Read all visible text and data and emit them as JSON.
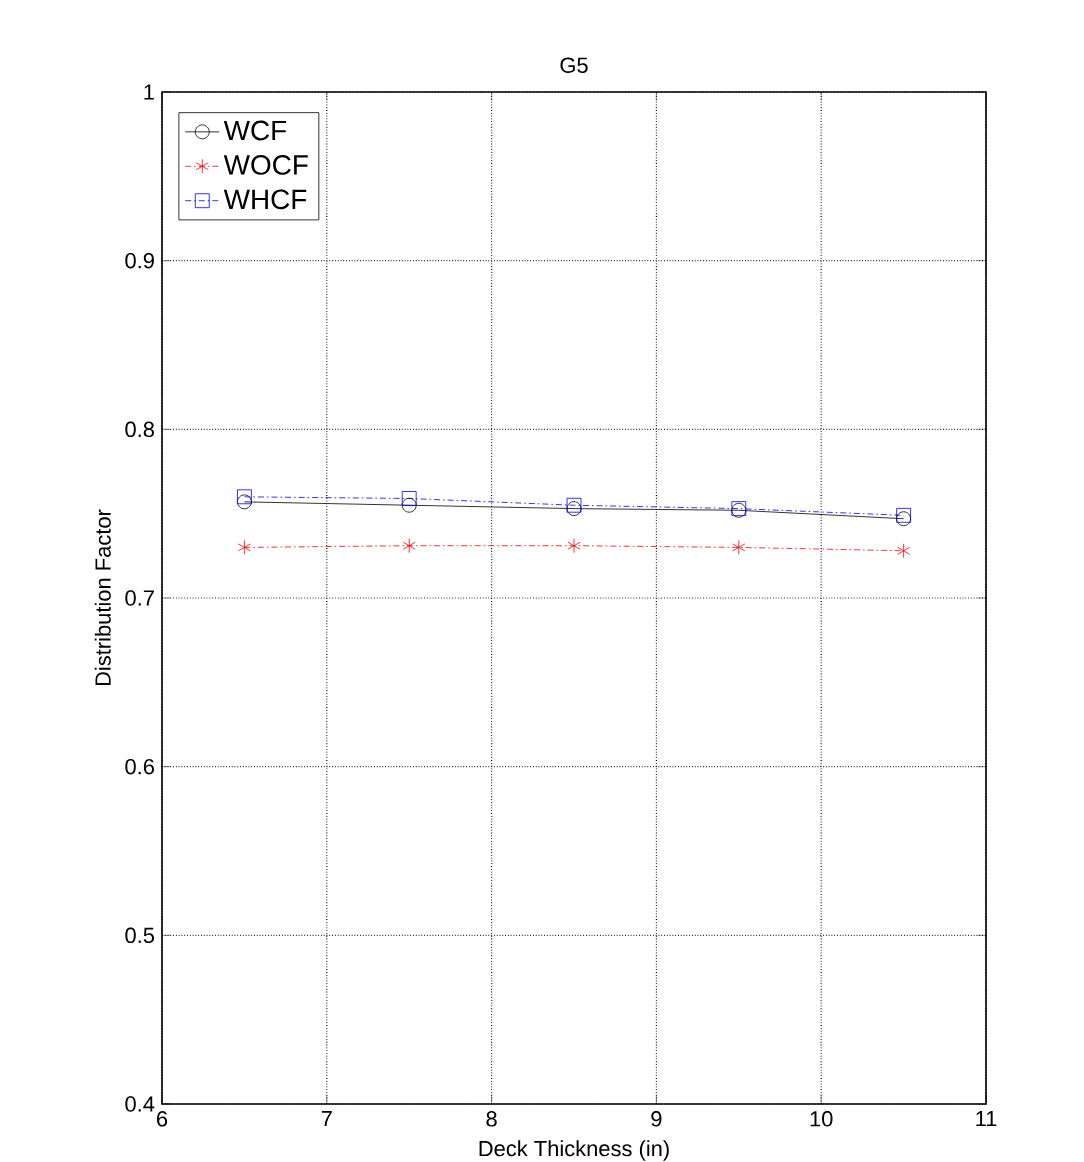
{
  "chart_data": {
    "type": "line",
    "title": "G5",
    "xlabel": "Deck Thickness (in)",
    "ylabel": "Distribution Factor",
    "x": [
      6.5,
      7.5,
      8.5,
      9.5,
      10.5
    ],
    "series": [
      {
        "name": "WCF",
        "color": "#000000",
        "marker": "circle",
        "line_style": "solid",
        "values": [
          0.757,
          0.755,
          0.753,
          0.752,
          0.747
        ]
      },
      {
        "name": "WOCF",
        "color": "#ff0000",
        "marker": "cross",
        "line_style": "dashed",
        "values": [
          0.73,
          0.731,
          0.731,
          0.73,
          0.728
        ]
      },
      {
        "name": "WHCF",
        "color": "#0000ff",
        "marker": "square",
        "line_style": "dashed",
        "values": [
          0.76,
          0.759,
          0.755,
          0.753,
          0.749
        ]
      }
    ],
    "xlim": [
      6,
      11
    ],
    "ylim": [
      0.4,
      1
    ],
    "xticks": [
      6,
      7,
      8,
      9,
      10,
      11
    ],
    "yticks": [
      0.4,
      0.5,
      0.6,
      0.7,
      0.8,
      0.9,
      1
    ],
    "grid": true,
    "legend": "top left"
  }
}
